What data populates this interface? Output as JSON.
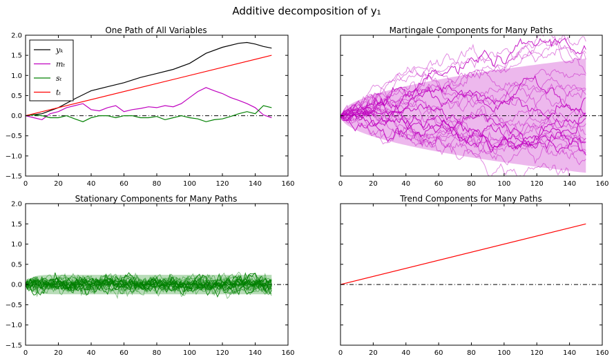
{
  "figure": {
    "title": "Additive decomposition of y₁"
  },
  "chart_data": [
    {
      "id": "one_path",
      "type": "line",
      "title": "One Path of All Variables",
      "xlim": [
        0,
        160
      ],
      "ylim": [
        -1.5,
        2.0
      ],
      "xticks": [
        "0",
        "20",
        "40",
        "60",
        "80",
        "100",
        "120",
        "140",
        "160"
      ],
      "yticks": [
        "−1.5",
        "−1.0",
        "−0.5",
        "0.0",
        "0.5",
        "1.0",
        "1.5",
        "2.0"
      ],
      "zero_line": true,
      "legend_position": "top-left",
      "series": [
        {
          "name": "yₖ",
          "color": "#000000",
          "x": [
            0,
            10,
            20,
            30,
            40,
            50,
            60,
            70,
            80,
            90,
            100,
            110,
            120,
            130,
            135,
            140,
            145,
            150
          ],
          "y": [
            0.0,
            0.05,
            0.2,
            0.42,
            0.62,
            0.72,
            0.82,
            0.95,
            1.05,
            1.15,
            1.3,
            1.55,
            1.7,
            1.8,
            1.82,
            1.78,
            1.72,
            1.68
          ]
        },
        {
          "name": "mₜ",
          "color": "#bf00bf",
          "x": [
            0,
            5,
            10,
            15,
            20,
            25,
            30,
            35,
            40,
            45,
            50,
            55,
            60,
            65,
            70,
            75,
            80,
            85,
            90,
            95,
            100,
            105,
            110,
            115,
            120,
            125,
            130,
            135,
            140,
            145,
            150
          ],
          "y": [
            0.0,
            -0.05,
            -0.1,
            0.05,
            0.1,
            0.2,
            0.25,
            0.3,
            0.15,
            0.12,
            0.2,
            0.25,
            0.1,
            0.15,
            0.18,
            0.22,
            0.2,
            0.25,
            0.22,
            0.3,
            0.45,
            0.6,
            0.7,
            0.62,
            0.55,
            0.45,
            0.38,
            0.3,
            0.2,
            0.02,
            -0.05
          ]
        },
        {
          "name": "sₜ",
          "color": "#008000",
          "x": [
            0,
            5,
            10,
            15,
            20,
            25,
            30,
            35,
            40,
            45,
            50,
            55,
            60,
            65,
            70,
            75,
            80,
            85,
            90,
            95,
            100,
            105,
            110,
            115,
            120,
            125,
            130,
            135,
            140,
            145,
            150
          ],
          "y": [
            0.0,
            0.02,
            0.0,
            -0.05,
            -0.05,
            0.0,
            -0.08,
            -0.15,
            -0.05,
            0.0,
            0.0,
            -0.05,
            0.0,
            0.0,
            -0.05,
            -0.05,
            -0.02,
            -0.1,
            -0.05,
            0.0,
            -0.05,
            -0.08,
            -0.15,
            -0.1,
            -0.08,
            -0.02,
            0.05,
            0.1,
            0.05,
            0.25,
            0.2
          ]
        },
        {
          "name": "tₜ",
          "color": "#ff0000",
          "x": [
            0,
            150
          ],
          "y": [
            0.0,
            1.5
          ]
        }
      ]
    },
    {
      "id": "martingale",
      "type": "line",
      "title": "Martingale Components for Many Paths",
      "xlim": [
        0,
        160
      ],
      "ylim": [
        -1.5,
        2.0
      ],
      "xticks": [
        "0",
        "20",
        "40",
        "60",
        "80",
        "100",
        "120",
        "140",
        "160"
      ],
      "zero_line": true,
      "band": {
        "color": "#bf00bf",
        "x_end": 150,
        "upper_end": 1.42,
        "lower_end": -1.42
      },
      "paths_color": "#bf00bf",
      "path_count": 25,
      "path_spread_end": 0.8
    },
    {
      "id": "stationary",
      "type": "line",
      "title": "Stationary Components for Many Paths",
      "xlim": [
        0,
        160
      ],
      "ylim": [
        -1.5,
        2.0
      ],
      "xticks": [
        "0",
        "20",
        "40",
        "60",
        "80",
        "100",
        "120",
        "140",
        "160"
      ],
      "yticks": [
        "−1.5",
        "−1.0",
        "−0.5",
        "0.0",
        "0.5",
        "1.0",
        "1.5",
        "2.0"
      ],
      "zero_line": true,
      "band": {
        "color": "#008000",
        "x_end": 150,
        "upper": 0.24,
        "lower": -0.24
      },
      "paths_color": "#008000",
      "path_count": 25,
      "path_spread": 0.12
    },
    {
      "id": "trend",
      "type": "line",
      "title": "Trend Components for Many Paths",
      "xlim": [
        0,
        160
      ],
      "ylim": [
        -1.5,
        2.0
      ],
      "xticks": [
        "0",
        "20",
        "40",
        "60",
        "80",
        "100",
        "120",
        "140",
        "160"
      ],
      "zero_line": true,
      "series": [
        {
          "name": "",
          "color": "#ff0000",
          "x": [
            0,
            150
          ],
          "y": [
            0.0,
            1.5
          ]
        }
      ]
    }
  ]
}
